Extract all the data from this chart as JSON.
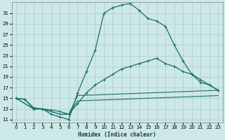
{
  "xlabel": "Humidex (Indice chaleur)",
  "xlim": [
    -0.5,
    23.5
  ],
  "ylim": [
    10.5,
    33
  ],
  "yticks": [
    11,
    13,
    15,
    17,
    19,
    21,
    23,
    25,
    27,
    29,
    31
  ],
  "xticks": [
    0,
    1,
    2,
    3,
    4,
    5,
    6,
    7,
    8,
    9,
    10,
    11,
    12,
    13,
    14,
    15,
    16,
    17,
    18,
    19,
    20,
    21,
    22,
    23
  ],
  "bg_color": "#cde8e8",
  "grid_color": "#b0d0d0",
  "line_color": "#1a6e6a",
  "line1": {
    "x": [
      0,
      1,
      2,
      3,
      4,
      5,
      6,
      7,
      8,
      9,
      10,
      11,
      12,
      13,
      14,
      15,
      16,
      17,
      18,
      19,
      20,
      21,
      22,
      23
    ],
    "y": [
      15.0,
      14.8,
      13.0,
      13.0,
      12.0,
      11.5,
      11.0,
      16.0,
      20.0,
      24.0,
      31.0,
      32.0,
      32.5,
      32.8,
      31.5,
      30.0,
      29.5,
      28.5,
      25.0,
      22.0,
      19.5,
      18.0,
      17.5,
      16.5
    ]
  },
  "line2": {
    "x": [
      0,
      1,
      2,
      3,
      4,
      5,
      6,
      7,
      8,
      9,
      10,
      11,
      12,
      13,
      14,
      15,
      16,
      17,
      18,
      19,
      20,
      21,
      22,
      23
    ],
    "y": [
      15.0,
      14.8,
      13.2,
      13.0,
      12.8,
      12.5,
      12.0,
      14.0,
      16.0,
      17.5,
      18.5,
      19.5,
      20.5,
      21.0,
      21.5,
      22.0,
      22.5,
      21.5,
      21.0,
      20.0,
      19.5,
      18.5,
      17.5,
      16.5
    ]
  },
  "line3": {
    "x": [
      0,
      2,
      3,
      4,
      5,
      6,
      7,
      23
    ],
    "y": [
      15.0,
      13.0,
      13.0,
      12.5,
      12.0,
      12.0,
      15.5,
      16.5
    ]
  },
  "line4": {
    "x": [
      0,
      2,
      3,
      4,
      5,
      6,
      7,
      23
    ],
    "y": [
      15.0,
      13.0,
      13.0,
      12.5,
      12.0,
      12.0,
      14.5,
      15.5
    ]
  }
}
